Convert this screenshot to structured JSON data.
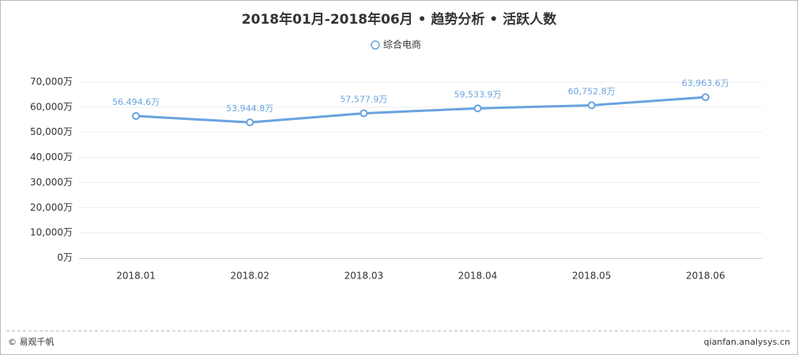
{
  "chart_data": {
    "type": "line",
    "title": "2018年01月-2018年06月 • 趋势分析 • 活跃人数",
    "categories": [
      "2018.01",
      "2018.02",
      "2018.03",
      "2018.04",
      "2018.05",
      "2018.06"
    ],
    "series": [
      {
        "name": "综合电商",
        "color": "#6aa3e0",
        "values": [
          56494.6,
          53944.8,
          57577.9,
          59533.9,
          60752.8,
          63963.6
        ],
        "value_labels": [
          "56,494.6万",
          "53,944.8万",
          "57,577.9万",
          "59,533.9万",
          "60,752.8万",
          "63,963.6万"
        ]
      }
    ],
    "ylim": [
      0,
      70000
    ],
    "yticks": [
      {
        "value": 0,
        "label": "0万"
      },
      {
        "value": 10000,
        "label": "10,000万"
      },
      {
        "value": 20000,
        "label": "20,000万"
      },
      {
        "value": 30000,
        "label": "30,000万"
      },
      {
        "value": 40000,
        "label": "40,000万"
      },
      {
        "value": 50000,
        "label": "50,000万"
      },
      {
        "value": 60000,
        "label": "60,000万"
      },
      {
        "value": 70000,
        "label": "70,000万"
      }
    ],
    "grid": true
  },
  "footer": {
    "source": "© 易观千帆",
    "url": "qianfan.analysys.cn"
  }
}
